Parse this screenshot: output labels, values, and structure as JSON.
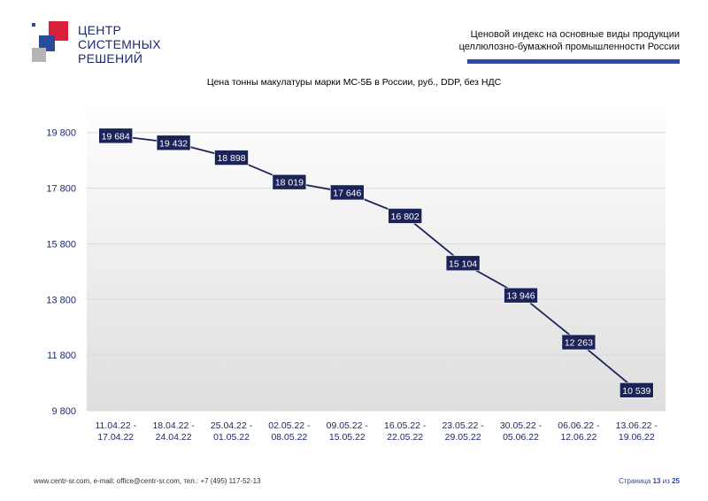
{
  "logo": {
    "lines": [
      "ЦЕНТР",
      "СИСТЕМНЫХ",
      "РЕШЕНИЙ"
    ]
  },
  "header": {
    "title_line1": "Ценовой индекс на основные виды продукции",
    "title_line2": "целлюлозно-бумажной промышленности России"
  },
  "chart_data": {
    "type": "line",
    "title": "Цена тонны макулатуры марки МС-5Б в России, руб., DDP, без НДС",
    "categories": [
      [
        "11.04.22 -",
        "17.04.22"
      ],
      [
        "18.04.22 -",
        "24.04.22"
      ],
      [
        "25.04.22 -",
        "01.05.22"
      ],
      [
        "02.05.22 -",
        "08.05.22"
      ],
      [
        "09.05.22 -",
        "15.05.22"
      ],
      [
        "16.05.22 -",
        "22.05.22"
      ],
      [
        "23.05.22 -",
        "29.05.22"
      ],
      [
        "30.05.22 -",
        "05.06.22"
      ],
      [
        "06.06.22 -",
        "12.06.22"
      ],
      [
        "13.06.22 -",
        "19.06.22"
      ]
    ],
    "values": [
      19684,
      19432,
      18898,
      18019,
      17646,
      16802,
      15104,
      13946,
      12263,
      10539
    ],
    "labels": [
      "19 684",
      "19 432",
      "18 898",
      "18 019",
      "17 646",
      "16 802",
      "15 104",
      "13 946",
      "12 263",
      "10 539"
    ],
    "ylim": [
      9800,
      21000
    ],
    "yticks": [
      9800,
      11800,
      13800,
      15800,
      17800,
      19800
    ],
    "ytick_labels": [
      "9 800",
      "11 800",
      "13 800",
      "15 800",
      "17 800",
      "19 800"
    ],
    "grid": true,
    "colors": {
      "line": "#1b2358",
      "label_bg": "#1b2358",
      "label_text": "#ffffff",
      "grid": "#d9d9d9",
      "axis_text": "#1b2a6b"
    }
  },
  "footer": {
    "contacts": "www.centr-sr.com, e-mail: office@centr-sr.com, тел.: +7 (495) 117-52-13",
    "page_prefix": "Страница",
    "page_current": "13",
    "page_sep": "из",
    "page_total": "25"
  }
}
